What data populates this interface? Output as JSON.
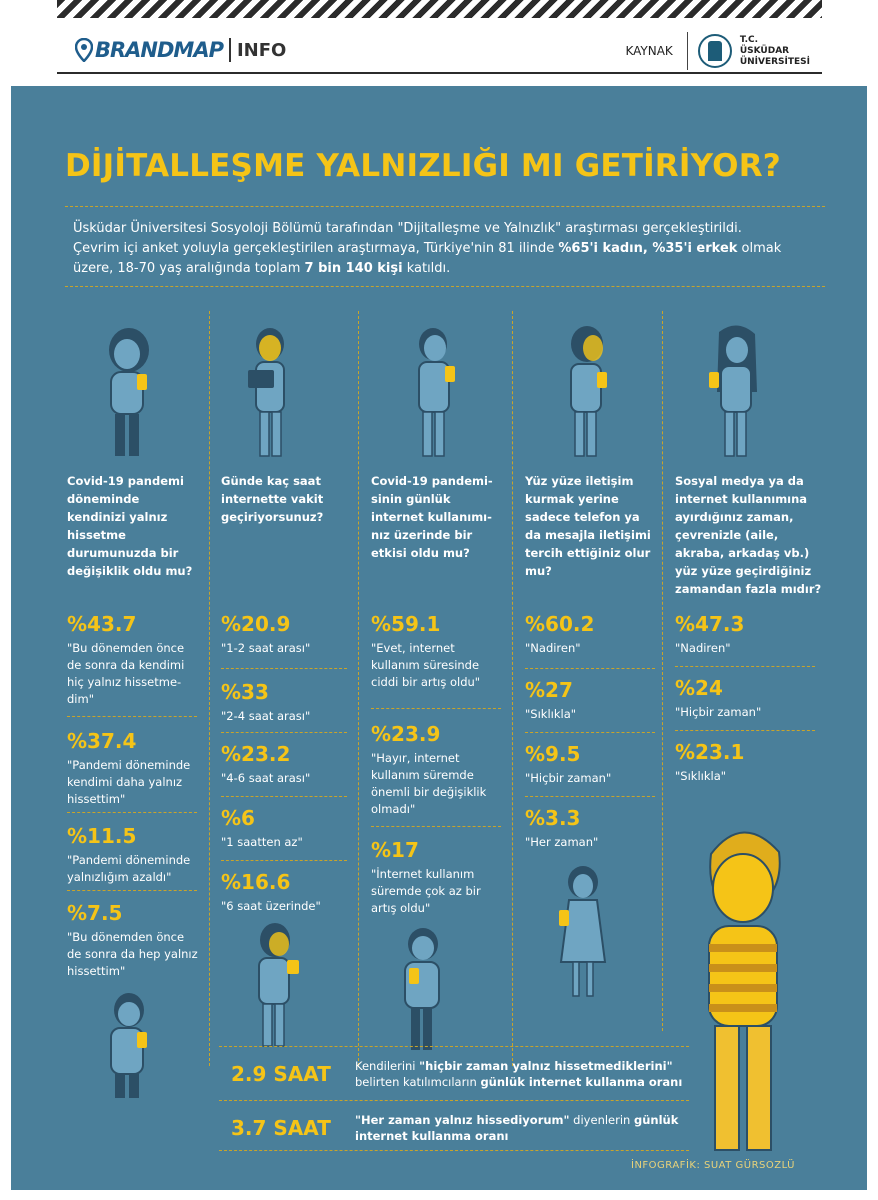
{
  "header": {
    "brand_name": "BRANDMAP",
    "brand_suffix": "INFO",
    "source_label": "KAYNAK",
    "university_lines": [
      "T.C.",
      "ÜSKÜDAR",
      "ÜNİVERSİTESİ"
    ]
  },
  "title": "DİJİTALLEŞME YALNIZLIĞI MI GETİRİYOR?",
  "intro": {
    "line1": "Üsküdar Üniversitesi Sosyoloji Bölümü tarafından \"Dijitalleşme ve Yalnızlık\" araştırması gerçekleştirildi.",
    "line2_pre": "Çevrim içi anket yoluyla gerçekleştirilen araştırmaya, Türkiye'nin 81 ilinde ",
    "line2_bold": "%65'i kadın, %35'i erkek",
    "line2_post": " olmak",
    "line3_pre": "üzere, 18-70 yaş aralığında toplam ",
    "line3_bold": "7 bin 140 kişi",
    "line3_post": " katıldı."
  },
  "columns": [
    {
      "question": "Covid-19 pandemi döneminde kendinizi yalnız hissetme durumunuzda bir değişiklik oldu mu?",
      "answers": [
        {
          "pct": "%43.7",
          "text": "\"Bu dönemden önce de sonra da kendimi hiç yalnız hissetme-dim\""
        },
        {
          "pct": "%37.4",
          "text": "\"Pandemi döneminde kendimi daha yalnız hissettim\""
        },
        {
          "pct": "%11.5",
          "text": "\"Pandemi döneminde yalnızlığım azaldı\""
        },
        {
          "pct": "%7.5",
          "text": "\"Bu dönemden önce de sonra da hep yalnız hissettim\""
        }
      ]
    },
    {
      "question": "Günde kaç saat internette vakit geçiriyorsunuz?",
      "answers": [
        {
          "pct": "%20.9",
          "text": "\"1-2 saat arası\""
        },
        {
          "pct": "%33",
          "text": "\"2-4 saat arası\""
        },
        {
          "pct": "%23.2",
          "text": "\"4-6 saat arası\""
        },
        {
          "pct": "%6",
          "text": "\"1 saatten az\""
        },
        {
          "pct": "%16.6",
          "text": "\"6 saat üzerinde\""
        }
      ]
    },
    {
      "question": "Covid-19 pandemi-sinin günlük internet kullanımı-nız üzerinde bir etkisi oldu mu?",
      "answers": [
        {
          "pct": "%59.1",
          "text": "\"Evet, internet kullanım süresinde ciddi bir artış oldu\""
        },
        {
          "pct": "%23.9",
          "text": "\"Hayır, internet kullanım süremde önemli bir değişiklik olmadı\""
        },
        {
          "pct": "%17",
          "text": "\"İnternet kullanım süremde çok az bir artış oldu\""
        }
      ]
    },
    {
      "question": "Yüz yüze iletişim kurmak yerine sadece telefon ya da mesajla iletişimi tercih ettiğiniz olur mu?",
      "answers": [
        {
          "pct": "%60.2",
          "text": "\"Nadiren\""
        },
        {
          "pct": "%27",
          "text": "\"Sıklıkla\""
        },
        {
          "pct": "%9.5",
          "text": "\"Hiçbir zaman\""
        },
        {
          "pct": "%3.3",
          "text": "\"Her zaman\""
        }
      ]
    },
    {
      "question": "Sosyal medya ya da internet kullanımına ayırdığınız zaman, çevrenizle (aile, akraba, arkadaş vb.) yüz yüze geçirdiğiniz zamandan fazla mıdır?",
      "answers": [
        {
          "pct": "%47.3",
          "text": "\"Nadiren\""
        },
        {
          "pct": "%24",
          "text": "\"Hiçbir zaman\""
        },
        {
          "pct": "%23.1",
          "text": "\"Sıklıkla\""
        }
      ]
    }
  ],
  "bottom": [
    {
      "value": "2.9 SAAT",
      "pre": "Kendilerini ",
      "bold1": "\"hiçbir zaman yalnız hissetmediklerini\"",
      "mid": " belirten katılımcıların ",
      "bold2": "günlük internet kullanma oranı",
      "post": ""
    },
    {
      "value": "3.7 SAAT",
      "pre": "",
      "bold1": "\"Her zaman yalnız hissediyorum\"",
      "mid": " diyenlerin ",
      "bold2": "günlük internet kullanma oranı",
      "post": ""
    }
  ],
  "credit": "İNFOGRAFİK: SUAT GÜRSOZLÜ",
  "colors": {
    "panel": "#4a7f9a",
    "accent": "#f5c417",
    "figure": "#6fa5c2",
    "figure_dark": "#2c4f66"
  }
}
